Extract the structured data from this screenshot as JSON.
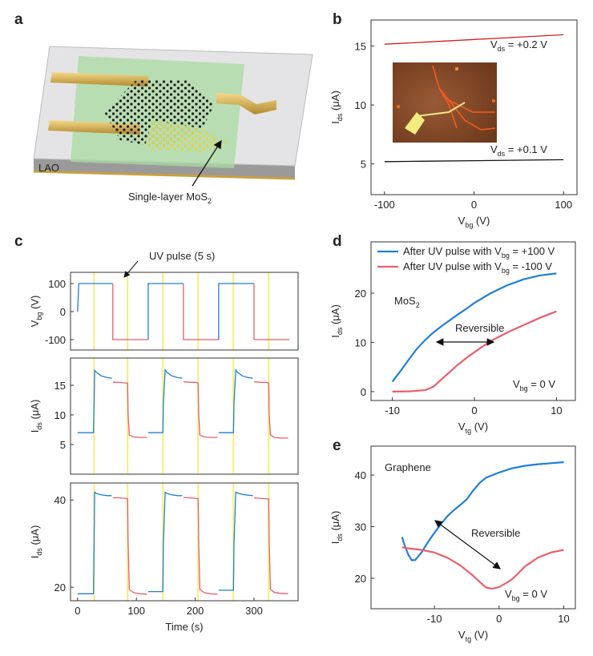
{
  "panel_labels": [
    "a",
    "b",
    "c",
    "d",
    "e"
  ],
  "illustration": {
    "substrate": "LAO",
    "material": [
      "Single-layer MoS",
      "2"
    ]
  },
  "chart_data": [
    {
      "type": "line",
      "xlim": [
        -115,
        115
      ],
      "ylim": [
        2.4,
        17.2
      ],
      "xticks": [
        -100,
        0,
        100
      ],
      "yticks": [
        5,
        10,
        15
      ],
      "xlabel": [
        "V",
        "bg",
        " (V)"
      ],
      "ylabel": [
        "I",
        "ds",
        " (μA)"
      ],
      "series": [
        {
          "color": "#d42020",
          "x": [
            -100,
            -50,
            0,
            50,
            100
          ],
          "values": [
            15.15,
            15.35,
            15.55,
            15.75,
            15.95
          ]
        },
        {
          "color": "#111111",
          "x": [
            -100,
            -50,
            0,
            50,
            100
          ],
          "values": [
            5.2,
            5.24,
            5.28,
            5.32,
            5.36
          ]
        }
      ],
      "annotations": [
        {
          "text": [
            "V",
            "ds",
            " = +0.2 V"
          ],
          "color": "#d42020"
        },
        {
          "text": [
            "V",
            "ds",
            " = +0.1 V"
          ],
          "color": "#111111"
        }
      ]
    },
    {
      "type": "line",
      "xlim": [
        -12,
        375
      ],
      "ylim": [
        -137,
        140
      ],
      "yticks": [
        -100,
        0,
        100
      ],
      "ylabel": [
        "V",
        "bg",
        " (V)"
      ],
      "pulses": [
        28,
        85,
        145,
        205,
        265,
        325
      ],
      "series": [
        {
          "color": "#1f7fd6",
          "x": [
            0,
            2,
            60,
            61,
            120,
            120,
            180,
            181,
            240,
            240,
            300
          ],
          "values": [
            0,
            100,
            100,
            null,
            -100,
            100,
            100,
            null,
            -100,
            100,
            100
          ]
        },
        {
          "color": "#e85f6a",
          "x": [
            60,
            60,
            120,
            121,
            180,
            180,
            240,
            241,
            300,
            300,
            360
          ],
          "values": [
            100,
            -100,
            -100,
            null,
            100,
            -100,
            -100,
            null,
            100,
            -100,
            -100
          ]
        }
      ],
      "annotations": [
        {
          "text": [
            "UV pulse (5 s)"
          ]
        }
      ]
    },
    {
      "type": "line",
      "xlim": [
        -12,
        375
      ],
      "ylim": [
        0,
        19.6
      ],
      "yticks": [
        5,
        10,
        15
      ],
      "ylabel": [
        "I",
        "ds",
        " (μA)"
      ],
      "series": [
        {
          "color": "#1f7fd6",
          "x": [
            0,
            10,
            20,
            27,
            28,
            29,
            32,
            40,
            50,
            58,
            59,
            120,
            130,
            140,
            145,
            146,
            149,
            152,
            160,
            170,
            178,
            179,
            240,
            250,
            260,
            265,
            266,
            269,
            272,
            280,
            290,
            298
          ],
          "values": [
            7,
            7,
            7,
            7,
            12,
            17.5,
            17.2,
            16.6,
            16.3,
            16.2,
            null,
            7,
            7,
            7,
            7,
            12,
            17.6,
            17.2,
            16.6,
            16.3,
            16.2,
            null,
            7,
            7,
            7,
            7,
            12,
            17.6,
            17.2,
            16.6,
            16.3,
            16.2
          ]
        },
        {
          "color": "#e85f6a",
          "x": [
            60,
            70,
            80,
            85,
            86,
            88,
            95,
            105,
            118,
            119,
            180,
            190,
            200,
            205,
            206,
            208,
            215,
            225,
            238,
            239,
            300,
            310,
            320,
            325,
            326,
            328,
            335,
            345,
            358
          ],
          "values": [
            15.5,
            15.5,
            15.4,
            15.4,
            10,
            6.6,
            6.3,
            6.2,
            6.2,
            null,
            15.6,
            15.5,
            15.5,
            15.4,
            10,
            6.6,
            6.3,
            6.2,
            6.2,
            null,
            15.6,
            15.5,
            15.5,
            15.4,
            10,
            6.6,
            6.2,
            6.1,
            6.1
          ]
        }
      ]
    },
    {
      "type": "line",
      "xlim": [
        -12,
        375
      ],
      "ylim": [
        16.9,
        43.9
      ],
      "xticks": [
        0,
        100,
        200,
        300
      ],
      "yticks": [
        20,
        40
      ],
      "xlabel": [
        "Time (s)"
      ],
      "ylabel": [
        "I",
        "ds",
        " (μA)"
      ],
      "series": [
        {
          "color": "#1f7fd6",
          "x": [
            0,
            10,
            20,
            27,
            28,
            29,
            32,
            40,
            50,
            58,
            59,
            120,
            130,
            140,
            145,
            146,
            149,
            152,
            160,
            170,
            178,
            179,
            240,
            250,
            260,
            265,
            266,
            269,
            272,
            280,
            290,
            298
          ],
          "values": [
            18.5,
            18.5,
            18.5,
            18.5,
            30,
            41.8,
            41.5,
            41.2,
            41,
            41,
            null,
            19,
            19,
            19,
            19,
            30,
            41.8,
            41.5,
            41.2,
            41,
            41,
            null,
            19.3,
            19.3,
            19.3,
            19.3,
            30,
            41.8,
            41.6,
            41.3,
            41.1,
            41
          ]
        },
        {
          "color": "#e85f6a",
          "x": [
            60,
            70,
            80,
            85,
            86,
            88,
            95,
            105,
            118,
            119,
            180,
            190,
            200,
            205,
            206,
            208,
            215,
            225,
            238,
            239,
            300,
            310,
            320,
            325,
            326,
            328,
            335,
            345,
            358
          ],
          "values": [
            40.5,
            40.5,
            40.4,
            40.3,
            30,
            19.5,
            18.8,
            18.5,
            18.4,
            null,
            40.6,
            40.5,
            40.4,
            40.3,
            30,
            19.5,
            18.8,
            18.5,
            18.4,
            null,
            40.5,
            40.4,
            40.3,
            40.2,
            30,
            19.5,
            18.8,
            18.6,
            18.5
          ]
        }
      ]
    },
    {
      "type": "line",
      "xlim": [
        -12.6,
        12.3
      ],
      "ylim": [
        -1.8,
        30.4
      ],
      "xticks": [
        -10,
        0,
        10
      ],
      "yticks": [
        0,
        10,
        20
      ],
      "xlabel": [
        "V",
        "tg",
        " (V)"
      ],
      "ylabel": [
        "I",
        "ds",
        " (μA)"
      ],
      "legend": "upper left",
      "series": [
        {
          "name": [
            "After UV pulse with V",
            "bg",
            " = +100 V"
          ],
          "color": "#1f7fd6",
          "x": [
            -10,
            -9,
            -8,
            -7,
            -6,
            -5,
            -4,
            -3,
            -2,
            -1,
            0,
            2,
            4,
            6,
            8,
            10
          ],
          "values": [
            2,
            4.2,
            6.5,
            8.7,
            10.5,
            12,
            13.3,
            14.5,
            15.7,
            16.8,
            18,
            20,
            21.6,
            22.8,
            23.6,
            24
          ]
        },
        {
          "name": [
            "After UV pulse with V",
            "bg",
            " = -100 V"
          ],
          "color": "#e85f6a",
          "x": [
            -10,
            -8,
            -6,
            -5,
            -4,
            -3,
            -2,
            -1,
            0,
            2,
            4,
            6,
            8,
            10
          ],
          "values": [
            0,
            0.05,
            0.3,
            1,
            2.5,
            4,
            5.5,
            6.8,
            8,
            10.3,
            12,
            13.5,
            15,
            16.3
          ]
        }
      ],
      "annotations": [
        {
          "text": [
            "MoS",
            "2"
          ]
        },
        {
          "text": [
            "Reversible"
          ]
        },
        {
          "text": [
            "V",
            "bg",
            " = 0 V"
          ]
        }
      ]
    },
    {
      "type": "line",
      "xlim": [
        -19.8,
        11.8
      ],
      "ylim": [
        14.1,
        45.6
      ],
      "xticks": [
        -10,
        0,
        10
      ],
      "yticks": [
        20,
        30,
        40
      ],
      "xlabel": [
        "V",
        "tg",
        " (V)"
      ],
      "ylabel": [
        "I",
        "ds",
        " (μA)"
      ],
      "series": [
        {
          "color": "#1f7fd6",
          "x": [
            -15,
            -14.5,
            -14,
            -13.5,
            -13,
            -12,
            -11,
            -10,
            -9,
            -8,
            -7,
            -6,
            -5,
            -4,
            -3,
            -2,
            0,
            2,
            4,
            6,
            8,
            10
          ],
          "values": [
            28,
            26,
            24.5,
            23.5,
            23.5,
            25,
            27,
            28.8,
            30.5,
            32,
            33.2,
            34.2,
            35.3,
            37,
            38.5,
            39.5,
            40.5,
            41.3,
            41.8,
            42.1,
            42.3,
            42.5
          ]
        },
        {
          "color": "#e85f6a",
          "x": [
            -15,
            -14,
            -12,
            -10,
            -8,
            -6,
            -4,
            -3,
            -2,
            -1,
            0,
            1,
            2,
            3,
            4,
            6,
            8,
            10
          ],
          "values": [
            26,
            25.8,
            25.5,
            25,
            24,
            22.5,
            20.5,
            19.3,
            18.2,
            18,
            18.3,
            19,
            19.8,
            21,
            22.3,
            24,
            25,
            25.5
          ]
        }
      ],
      "annotations": [
        {
          "text": [
            "Graphene"
          ]
        },
        {
          "text": [
            "Reversible"
          ]
        },
        {
          "text": [
            "V",
            "bg",
            " = 0 V"
          ]
        }
      ]
    }
  ]
}
